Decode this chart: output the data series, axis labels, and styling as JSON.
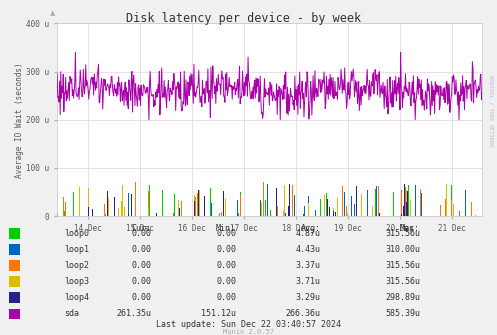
{
  "title": "Disk latency per device - by week",
  "ylabel": "Average IO Wait (seconds)",
  "background_color": "#f0f0f0",
  "plot_bg_color": "#ffffff",
  "grid_color": "#e8d8e8",
  "border_color": "#aaaaaa",
  "ylim": [
    0,
    400
  ],
  "yticks": [
    0,
    100,
    200,
    300,
    400
  ],
  "ytick_labels": [
    "0",
    "100 u",
    "200 u",
    "300 u",
    "400 u"
  ],
  "xtick_labels": [
    "14 Dec",
    "15 Dec",
    "16 Dec",
    "17 Dec",
    "18 Dec",
    "19 Dec",
    "20 Dec",
    "21 Dec"
  ],
  "series_colors": {
    "loop0": "#00cc00",
    "loop1": "#0066bb",
    "loop2": "#ff7700",
    "loop3": "#ddbb00",
    "loop4": "#222288",
    "sda": "#aa00aa"
  },
  "legend": [
    {
      "label": "loop0",
      "color": "#00cc00"
    },
    {
      "label": "loop1",
      "color": "#0066bb"
    },
    {
      "label": "loop2",
      "color": "#ff7700"
    },
    {
      "label": "loop3",
      "color": "#ddbb00"
    },
    {
      "label": "loop4",
      "color": "#222288"
    },
    {
      "label": "sda",
      "color": "#aa00aa"
    }
  ],
  "table_headers": [
    "Cur:",
    "Min:",
    "Avg:",
    "Max:"
  ],
  "table_rows": [
    [
      "loop0",
      "0.00",
      "0.00",
      "4.87u",
      "315.56u"
    ],
    [
      "loop1",
      "0.00",
      "0.00",
      "4.43u",
      "310.00u"
    ],
    [
      "loop2",
      "0.00",
      "0.00",
      "3.37u",
      "315.56u"
    ],
    [
      "loop3",
      "0.00",
      "0.00",
      "3.71u",
      "315.56u"
    ],
    [
      "loop4",
      "0.00",
      "0.00",
      "3.29u",
      "298.89u"
    ],
    [
      "sda",
      "261.35u",
      "151.12u",
      "266.36u",
      "585.39u"
    ]
  ],
  "last_update": "Last update: Sun Dec 22 03:40:57 2024",
  "munin_version": "Munin 2.0.57",
  "rrdtool_label": "RRDTOOL / TOBI OETIKER",
  "n_points": 700,
  "sda_mean": 260,
  "sda_std": 22,
  "loop_max_spike": 70,
  "loop_spike_density": 0.05
}
